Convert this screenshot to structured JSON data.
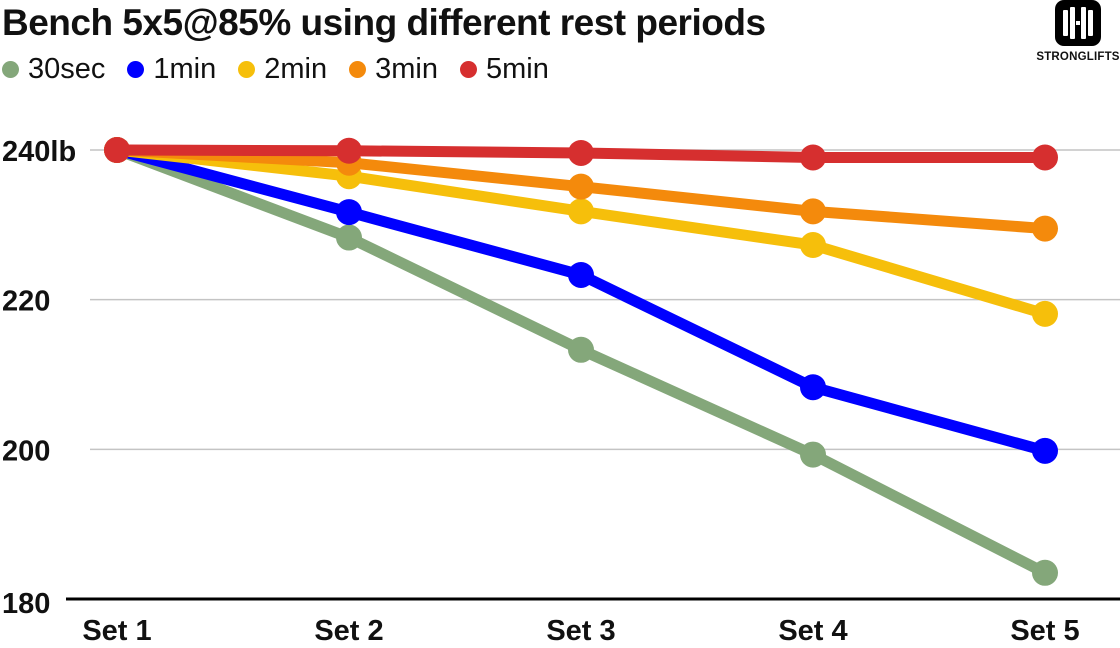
{
  "title": "Bench 5x5@85% using different rest periods",
  "logo": {
    "text": "STRONGLIFTS",
    "icon": "barbell-plates-icon"
  },
  "chart_data": {
    "type": "line",
    "title": "Bench 5x5@85% using different rest periods",
    "categories": [
      "Set 1",
      "Set 2",
      "Set 3",
      "Set 4",
      "Set 5"
    ],
    "yticks": [
      180,
      200,
      220,
      240
    ],
    "ytick_labels": [
      "180",
      "200",
      "220",
      "240lb"
    ],
    "ylim": [
      180,
      246
    ],
    "grid": true,
    "legend_position": "top-left",
    "series": [
      {
        "name": "30sec",
        "color": "#84a77a",
        "values": [
          240,
          228.3,
          213.3,
          199.3,
          183.5
        ]
      },
      {
        "name": "1min",
        "color": "#0000ff",
        "values": [
          240,
          231.7,
          223.3,
          208.3,
          199.8
        ]
      },
      {
        "name": "2min",
        "color": "#f6bf0b",
        "values": [
          240,
          236.5,
          231.8,
          227.3,
          218.1
        ]
      },
      {
        "name": "3min",
        "color": "#f48a0c",
        "values": [
          240,
          238.3,
          235.1,
          231.8,
          229.5
        ]
      },
      {
        "name": "5min",
        "color": "#d62f2f",
        "values": [
          240,
          239.9,
          239.6,
          239.0,
          239.0
        ]
      }
    ]
  }
}
